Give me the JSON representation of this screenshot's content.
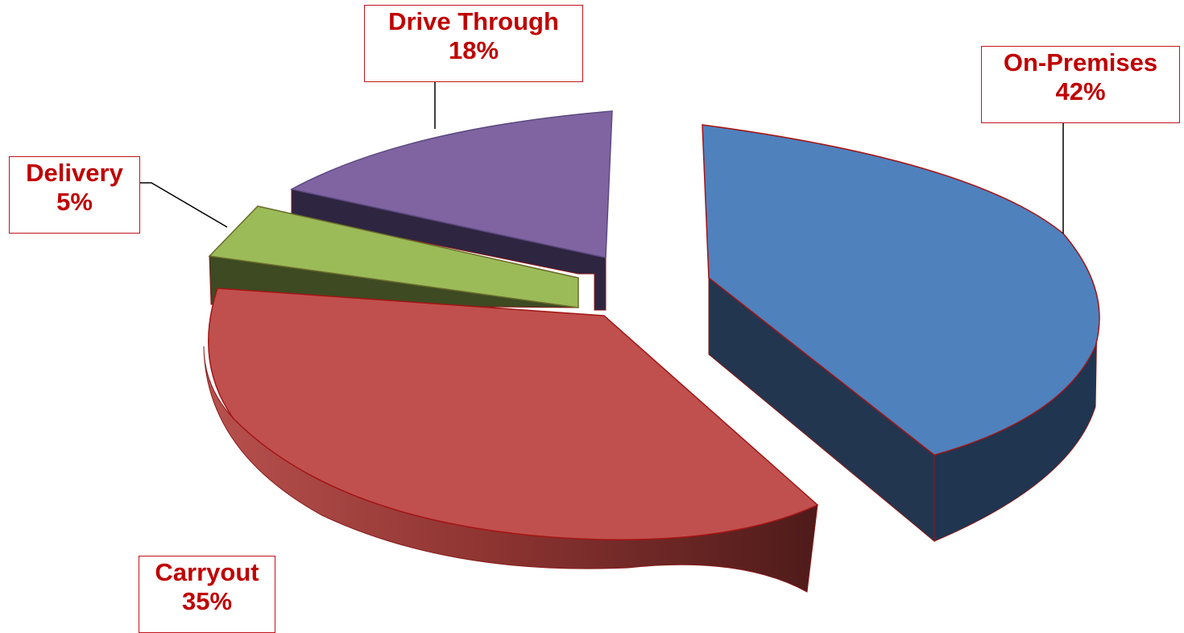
{
  "chart_data": {
    "type": "pie",
    "style": "3d-exploded",
    "title": "",
    "slices": [
      {
        "label": "On-Premises",
        "value": 42,
        "value_text": "42%",
        "color": "#4f81bd",
        "side_color": "#1f3550"
      },
      {
        "label": "Carryout",
        "value": 35,
        "value_text": "35%",
        "color": "#c0504d",
        "side_color": "#7a2a28"
      },
      {
        "label": "Delivery",
        "value": 5,
        "value_text": "5%",
        "color": "#9bbb59",
        "side_color": "#3d4a22"
      },
      {
        "label": "Drive Through",
        "value": 18,
        "value_text": "18%",
        "color": "#8064a2",
        "side_color": "#2e2540"
      }
    ],
    "label_color": "#c00000",
    "label_border_color": "#c0141c"
  }
}
